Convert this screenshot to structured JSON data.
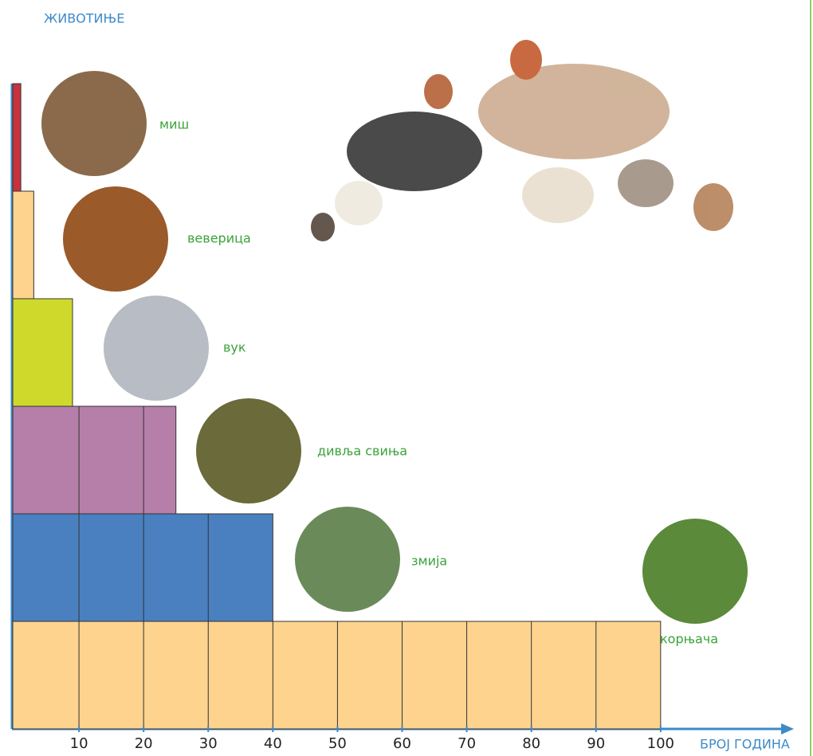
{
  "chart_data": {
    "type": "bar",
    "orientation": "horizontal",
    "y_label": "ЖИВОТИЊЕ",
    "x_label": "БРОЈ ГОДИНА",
    "categories": [
      "миш",
      "веверица",
      "вук",
      "дивља свиња",
      "змија",
      "корњача"
    ],
    "values": [
      1,
      3,
      9,
      25,
      40,
      100
    ],
    "colors": [
      "#c8323c",
      "#fdd38e",
      "#cfd92c",
      "#b57fa9",
      "#4a80c0",
      "#fdd38e"
    ],
    "xlim": [
      0,
      120
    ],
    "xticks": [
      10,
      20,
      30,
      40,
      50,
      60,
      70,
      80,
      90,
      100
    ]
  }
}
